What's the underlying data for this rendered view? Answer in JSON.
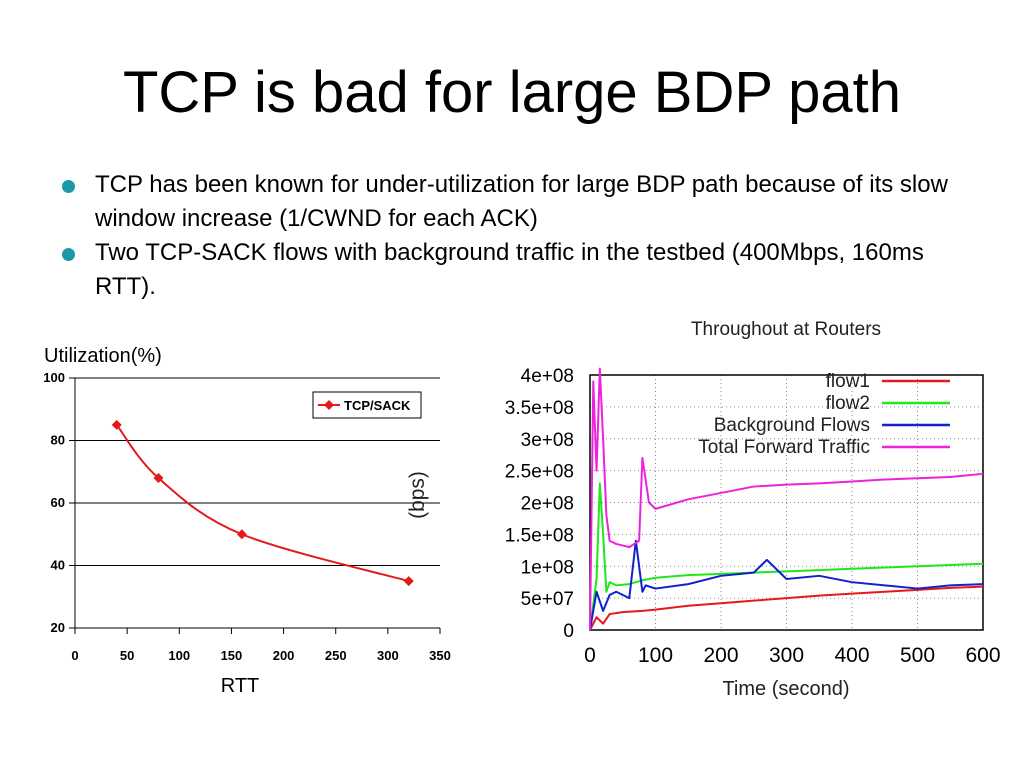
{
  "slide": {
    "title": "TCP is bad for large BDP path",
    "bullets": [
      "TCP has been known for under-utilization for large BDP path because of its slow window increase (1/CWND for each ACK)",
      "Two TCP-SACK flows with background traffic in the testbed (400Mbps, 160ms RTT)."
    ],
    "bullet_color": "#1a9aa6"
  },
  "chart_data": [
    {
      "type": "line",
      "title": "",
      "ylabel": "Utilization(%)",
      "xlabel": "RTT",
      "xlim": [
        0,
        350
      ],
      "ylim": [
        20,
        100
      ],
      "xticks": [
        0,
        50,
        100,
        150,
        200,
        250,
        300,
        350
      ],
      "yticks": [
        20,
        40,
        60,
        80,
        100
      ],
      "grid": "horizontal",
      "legend": "top-right",
      "series": [
        {
          "name": "TCP/SACK",
          "color": "#e3191c",
          "marker": "diamond",
          "x": [
            40,
            80,
            160,
            320
          ],
          "y": [
            85,
            68,
            50,
            35
          ]
        }
      ]
    },
    {
      "type": "line",
      "title": "Throughout at Routers",
      "ylabel": "(bps)",
      "xlabel": "Time (second)",
      "xlim": [
        0,
        600
      ],
      "ylim": [
        0,
        400000000
      ],
      "xticks": [
        0,
        100,
        200,
        300,
        400,
        500,
        600
      ],
      "yticks": [
        0,
        50000000,
        100000000,
        150000000,
        200000000,
        250000000,
        300000000,
        350000000,
        400000000
      ],
      "ytick_labels": [
        "0",
        "5e+07",
        "1e+08",
        "1.5e+08",
        "2e+08",
        "2.5e+08",
        "3e+08",
        "3.5e+08",
        "4e+08"
      ],
      "grid": "both, dotted",
      "legend": "top-right",
      "series": [
        {
          "name": "flow1",
          "color": "#e8191a",
          "x": [
            0,
            10,
            20,
            30,
            50,
            80,
            100,
            150,
            200,
            250,
            300,
            350,
            400,
            450,
            500,
            550,
            600
          ],
          "y": [
            0,
            20000000,
            10000000,
            25000000,
            28000000,
            30000000,
            32000000,
            38000000,
            42000000,
            46000000,
            50000000,
            54000000,
            57000000,
            60000000,
            63000000,
            66000000,
            68000000
          ]
        },
        {
          "name": "flow2",
          "color": "#1ee81a",
          "x": [
            0,
            10,
            15,
            20,
            25,
            30,
            40,
            60,
            80,
            100,
            150,
            200,
            250,
            300,
            350,
            400,
            450,
            500,
            550,
            600
          ],
          "y": [
            0,
            80000000,
            230000000,
            150000000,
            60000000,
            75000000,
            70000000,
            72000000,
            78000000,
            82000000,
            86000000,
            88000000,
            90000000,
            92000000,
            94000000,
            96000000,
            98000000,
            100000000,
            102000000,
            104000000
          ]
        },
        {
          "name": "Background Flows",
          "color": "#1122cc",
          "x": [
            0,
            10,
            20,
            30,
            40,
            60,
            70,
            80,
            85,
            100,
            150,
            200,
            250,
            270,
            300,
            350,
            400,
            450,
            500,
            550,
            600
          ],
          "y": [
            0,
            60000000,
            30000000,
            55000000,
            60000000,
            50000000,
            140000000,
            60000000,
            70000000,
            65000000,
            72000000,
            85000000,
            90000000,
            110000000,
            80000000,
            85000000,
            75000000,
            70000000,
            65000000,
            70000000,
            72000000
          ]
        },
        {
          "name": "Total Forward Traffic",
          "color": "#ee22dd",
          "x": [
            0,
            5,
            10,
            15,
            20,
            25,
            30,
            40,
            60,
            75,
            80,
            90,
            100,
            150,
            200,
            250,
            300,
            350,
            400,
            450,
            500,
            550,
            600
          ],
          "y": [
            0,
            390000000,
            250000000,
            410000000,
            300000000,
            180000000,
            140000000,
            135000000,
            130000000,
            140000000,
            270000000,
            200000000,
            190000000,
            205000000,
            215000000,
            225000000,
            228000000,
            230000000,
            233000000,
            236000000,
            238000000,
            240000000,
            245000000
          ]
        }
      ]
    }
  ]
}
